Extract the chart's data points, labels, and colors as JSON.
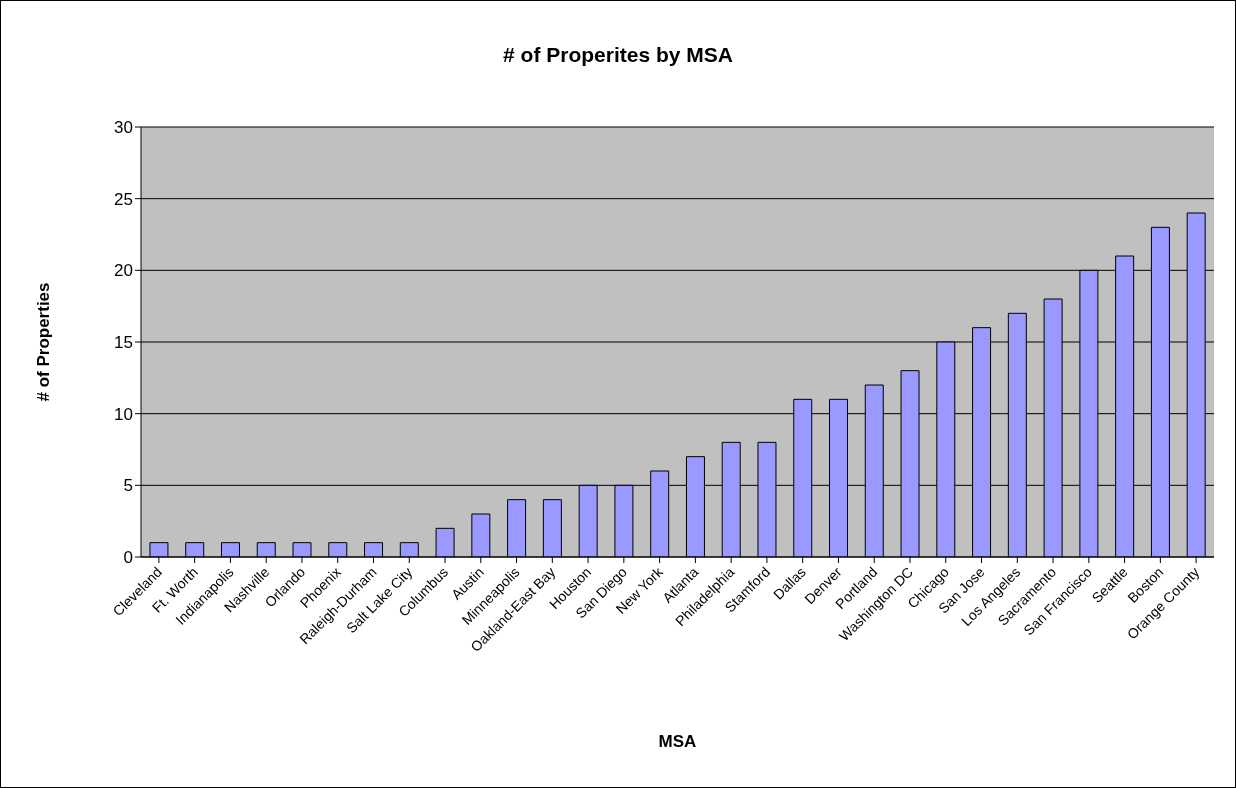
{
  "chart_data": {
    "type": "bar",
    "title": "# of Properites by MSA",
    "xlabel": "MSA",
    "ylabel": "# of Properties",
    "categories": [
      "Cleveland",
      "Ft. Worth",
      "Indianapolis",
      "Nashville",
      "Orlando",
      "Phoenix",
      "Raleigh-Durham",
      "Salt Lake City",
      "Columbus",
      "Austin",
      "Minneapolis",
      "Oakland-East Bay",
      "Houston",
      "San Diego",
      "New York",
      "Atlanta",
      "Philadelphia",
      "Stamford",
      "Dallas",
      "Denver",
      "Portland",
      "Washington DC",
      "Chicago",
      "San Jose",
      "Los Angeles",
      "Sacramento",
      "San Francisco",
      "Seattle",
      "Boston",
      "Orange County"
    ],
    "values": [
      1,
      1,
      1,
      1,
      1,
      1,
      1,
      1,
      2,
      3,
      4,
      4,
      5,
      5,
      6,
      7,
      8,
      8,
      11,
      11,
      12,
      13,
      15,
      16,
      17,
      18,
      20,
      21,
      23,
      24
    ],
    "color": "#9999ff",
    "ylim": [
      0,
      30
    ],
    "yticks": [
      0,
      5,
      10,
      15,
      20,
      25,
      30
    ],
    "grid": "y"
  }
}
